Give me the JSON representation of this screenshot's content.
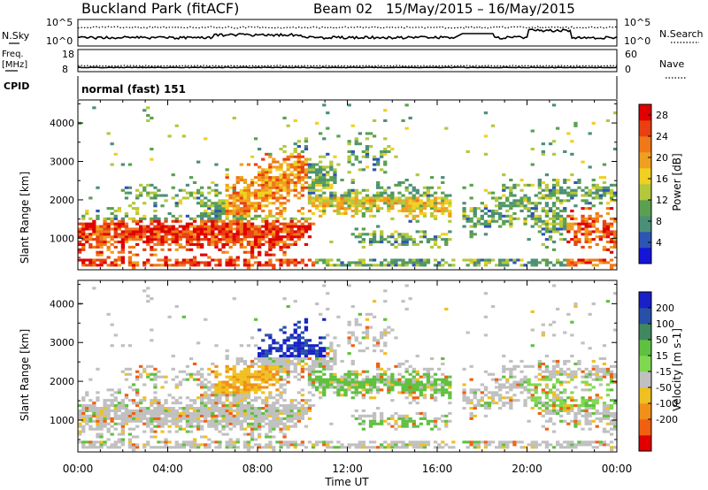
{
  "header": {
    "title": "Buckland Park (fitACF)",
    "beam": "Beam 02",
    "date_range": "15/May/2015 – 16/May/2015"
  },
  "noise_panel": {
    "left_label": "N.Sky",
    "right_label": "N.Search",
    "left_ticks": [
      "10^5",
      "10^0"
    ],
    "right_ticks": [
      "10^5",
      "10^0"
    ]
  },
  "freq_panel": {
    "left_label_1": "Freq.",
    "left_label_2": "[MHz]",
    "left_ticks": [
      "18",
      "8"
    ],
    "right_label": "Nave",
    "right_ticks": [
      "60",
      "0"
    ]
  },
  "cpid": {
    "label": "CPID",
    "value": "normal (fast) 151"
  },
  "chart_data": [
    {
      "type": "heatmap",
      "title": "Power",
      "ylabel": "Slant Range [km]",
      "xlabel": "Time UT",
      "x_ticks": [
        "00:00",
        "04:00",
        "08:00",
        "12:00",
        "16:00",
        "20:00",
        "00:00"
      ],
      "xlim_hours": [
        0,
        24
      ],
      "y_ticks": [
        1000,
        2000,
        3000,
        4000
      ],
      "ylim": [
        180,
        4600
      ],
      "colorbar": {
        "label": "Power [dB]",
        "ticks": [
          "4",
          "8",
          "12",
          "16",
          "20",
          "24",
          "28"
        ],
        "range": [
          0,
          30
        ],
        "colors": [
          "#1515d8",
          "#2d55b5",
          "#4c8f78",
          "#5aa050",
          "#b3c83c",
          "#f0d020",
          "#f0a020",
          "#f07818",
          "#e84010",
          "#e00000"
        ]
      },
      "data_gap_hours": [
        16.75,
        17.1
      ],
      "echo_regions": [
        {
          "t0": 0,
          "t1": 7.0,
          "r0": 700,
          "r1": 1800,
          "level": "high"
        },
        {
          "t0": 6.5,
          "t1": 10.3,
          "r0": 1000,
          "r1": 3400,
          "level": "high"
        },
        {
          "t0": 10.3,
          "t1": 16.7,
          "r0": 1400,
          "r1": 2400,
          "level": "mid"
        },
        {
          "t0": 17.1,
          "t1": 24,
          "r0": 700,
          "r1": 2400,
          "level": "low"
        },
        {
          "t0": 21.8,
          "t1": 24,
          "r0": 800,
          "r1": 1800,
          "level": "high"
        }
      ]
    },
    {
      "type": "heatmap",
      "title": "Velocity",
      "ylabel": "Slant Range [km]",
      "xlabel": "Time UT",
      "x_ticks": [
        "00:00",
        "04:00",
        "08:00",
        "12:00",
        "16:00",
        "20:00",
        "00:00"
      ],
      "xlim_hours": [
        0,
        24
      ],
      "y_ticks": [
        1000,
        2000,
        3000,
        4000
      ],
      "ylim": [
        180,
        4600
      ],
      "colorbar": {
        "label": "Velocity [m s-1]",
        "ticks": [
          "200",
          "100",
          "50",
          "15",
          "-15",
          "-50",
          "-100",
          "-200"
        ],
        "colors": [
          "#1820c8",
          "#2850a8",
          "#408860",
          "#60c040",
          "#80d850",
          "#c0c0c0",
          "#f0c020",
          "#f09018",
          "#f06010",
          "#e00000"
        ]
      },
      "data_gap_hours": [
        16.75,
        17.1
      ]
    }
  ]
}
